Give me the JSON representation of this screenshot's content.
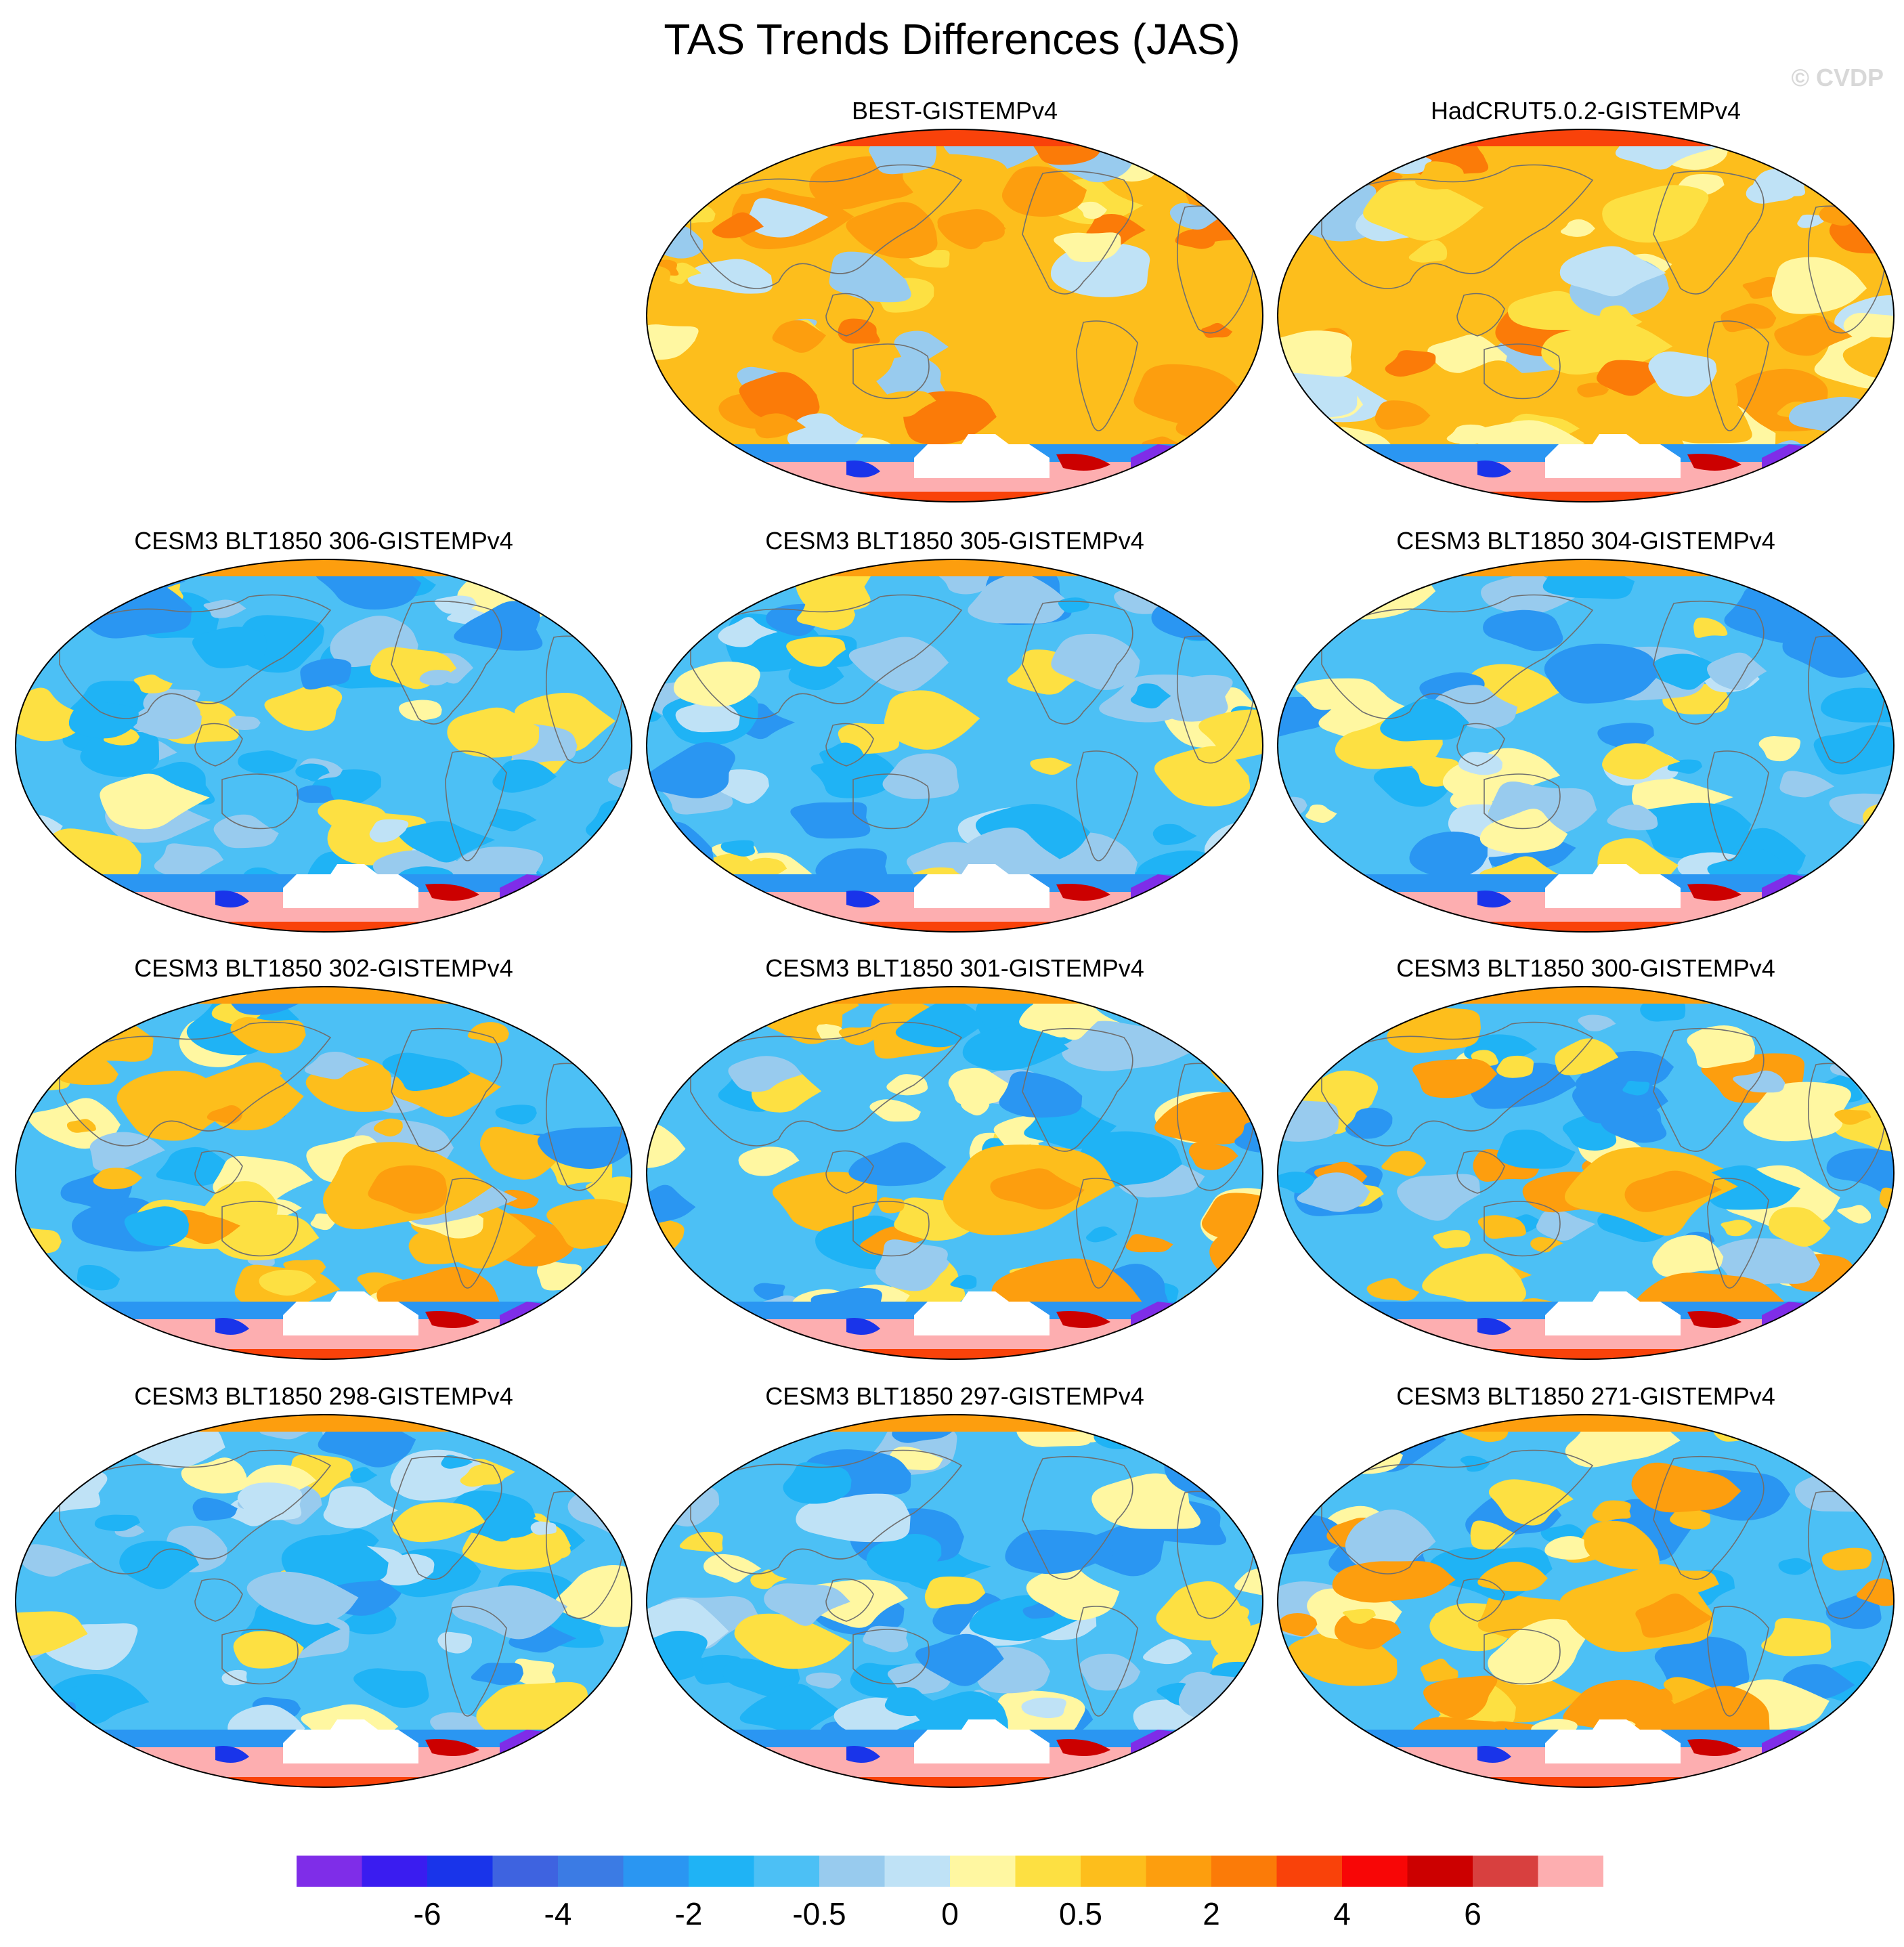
{
  "title": "TAS Trends Differences (JAS)",
  "watermark": "© CVDP",
  "colorbar": {
    "colors": [
      "#7f2de8",
      "#3a1cf0",
      "#1934ea",
      "#3e63e0",
      "#3b7be4",
      "#2a96f2",
      "#1fb3f5",
      "#4cc0f5",
      "#98cbee",
      "#bfe2f6",
      "#fff7a1",
      "#fde042",
      "#fdbe1c",
      "#fd9e0e",
      "#fb7b08",
      "#f9420a",
      "#f80606",
      "#cc0000",
      "#d8403f",
      "#fdaeb0"
    ],
    "tick_labels": [
      "-6",
      "-4",
      "-2",
      "-0.5",
      "0",
      "0.5",
      "2",
      "4",
      "6"
    ]
  },
  "panels": [
    {
      "label": "BEST-GISTEMPv4",
      "regime": "warm"
    },
    {
      "label": "HadCRUT5.0.2-GISTEMPv4",
      "regime": "warm"
    },
    {
      "label": "CESM3 BLT1850 306-GISTEMPv4",
      "regime": "cool"
    },
    {
      "label": "CESM3 BLT1850 305-GISTEMPv4",
      "regime": "cool"
    },
    {
      "label": "CESM3 BLT1850 304-GISTEMPv4",
      "regime": "cool"
    },
    {
      "label": "CESM3 BLT1850 302-GISTEMPv4",
      "regime": "mixed"
    },
    {
      "label": "CESM3 BLT1850 301-GISTEMPv4",
      "regime": "mixed"
    },
    {
      "label": "CESM3 BLT1850 300-GISTEMPv4",
      "regime": "mixed"
    },
    {
      "label": "CESM3 BLT1850 298-GISTEMPv4",
      "regime": "cool"
    },
    {
      "label": "CESM3 BLT1850 297-GISTEMPv4",
      "regime": "cool"
    },
    {
      "label": "CESM3 BLT1850 271-GISTEMPv4",
      "regime": "mixed"
    }
  ],
  "chart_data": {
    "type": "heatmap",
    "title": "TAS Trends Differences (JAS)",
    "projection": "Robinson, Pacific-centered",
    "panel_count": 11,
    "layout": "4 rows x 3 columns, top-left empty",
    "colorbar_ticks": [
      -6,
      -4,
      -2,
      -0.5,
      0,
      0.5,
      2,
      4,
      6
    ],
    "colorbar_boxes": 20
  }
}
